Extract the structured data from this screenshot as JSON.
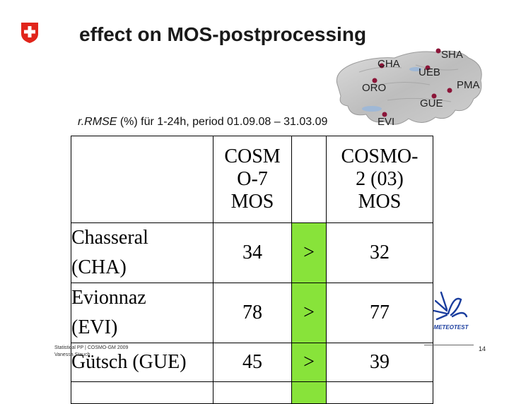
{
  "slide": {
    "title": "effect on MOS-postprocessing",
    "subtitle": {
      "italic_part": "r.RMSE",
      "rest": " (%) für 1-24h, period 01.09.08 – 31.03.09"
    },
    "page_number": "14",
    "footer": {
      "line1": "Statistical PP | COSMO-GM 2009",
      "line2": "Vanessa Stauch"
    }
  },
  "map": {
    "labels": {
      "cha": "CHA",
      "sha": "SHA",
      "ueb": "UEB",
      "oro": "ORO",
      "pma": "PMA",
      "gue": "GUE",
      "evi": "EVI"
    }
  },
  "table": {
    "headers": {
      "station": "",
      "col1": "COSMO-7 MOS",
      "col1_lines": [
        "COSM",
        "O-7",
        "MOS"
      ],
      "compare": "",
      "col2": "COSMO-2 (03) MOS",
      "col2_lines": [
        "COSMO-",
        "2 (03)",
        "MOS"
      ]
    },
    "rows": [
      {
        "station_lines": [
          "Chasseral",
          "(CHA)"
        ],
        "cosmo7": "34",
        "compare": ">",
        "cosmo2": "32"
      },
      {
        "station_lines": [
          "Evionnaz",
          "(EVI)"
        ],
        "cosmo7": "78",
        "compare": ">",
        "cosmo2": "77"
      },
      {
        "station_lines": [
          "Gütsch (GUE)"
        ],
        "cosmo7": "45",
        "compare": ">",
        "cosmo2": "39"
      }
    ]
  },
  "logos": {
    "meteotest": "METEOTEST"
  },
  "colors": {
    "highlight": "#88e33a",
    "swiss_red": "#e1251b",
    "map_marker": "#8b1538",
    "meteotest_blue": "#1a3d9e"
  },
  "icons": [
    "swiss-cross-icon",
    "map-station-marker-icon",
    "meteotest-logo-icon"
  ]
}
